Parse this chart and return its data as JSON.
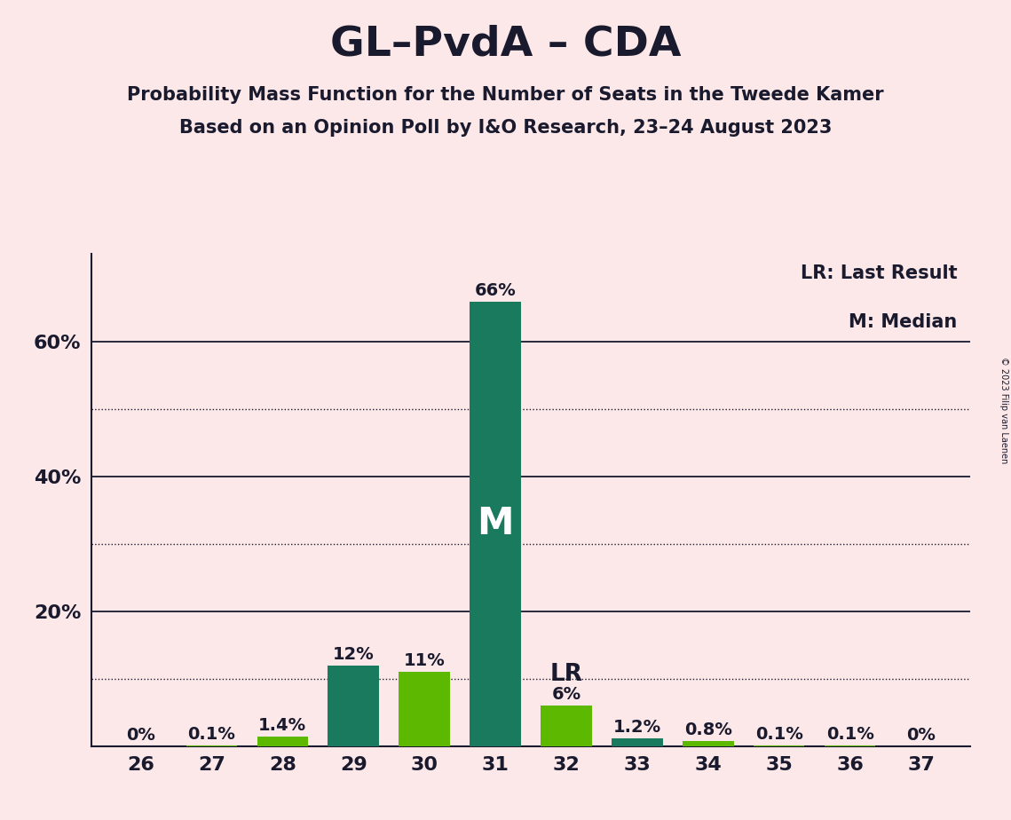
{
  "title": "GL–PvdA – CDA",
  "subtitle1": "Probability Mass Function for the Number of Seats in the Tweede Kamer",
  "subtitle2": "Based on an Opinion Poll by I&O Research, 23–24 August 2023",
  "copyright": "© 2023 Filip van Laenen",
  "seats": [
    26,
    27,
    28,
    29,
    30,
    31,
    32,
    33,
    34,
    35,
    36,
    37
  ],
  "probabilities": [
    0.0,
    0.1,
    1.4,
    12.0,
    11.0,
    66.0,
    6.0,
    1.2,
    0.8,
    0.1,
    0.1,
    0.0
  ],
  "bar_labels": [
    "0%",
    "0.1%",
    "1.4%",
    "12%",
    "11%",
    "66%",
    "6%",
    "1.2%",
    "0.8%",
    "0.1%",
    "0.1%",
    "0%"
  ],
  "bar_colors_list": [
    "#5cb800",
    "#5cb800",
    "#5cb800",
    "#1a7a5e",
    "#5cb800",
    "#1a7a5e",
    "#5cb800",
    "#1a7a5e",
    "#5cb800",
    "#5cb800",
    "#5cb800",
    "#5cb800"
  ],
  "median_seat": 31,
  "last_result_seat": 32,
  "dark_green": "#1a7a5e",
  "light_green": "#5cb800",
  "background_color": "#fce8e8",
  "solid_grid_ticks": [
    20,
    40,
    60
  ],
  "dotted_grid_ticks": [
    10,
    30,
    50
  ],
  "ytick_positions": [
    20,
    40,
    60
  ],
  "ytick_labels": [
    "20%",
    "40%",
    "60%"
  ],
  "ylim": [
    0,
    73
  ],
  "xlim_min": 25.3,
  "xlim_max": 37.7,
  "bar_width": 0.72,
  "legend_lr": "LR: Last Result",
  "legend_m": "M: Median",
  "label_m": "M",
  "label_lr": "LR",
  "title_fontsize": 34,
  "subtitle_fontsize": 15,
  "tick_fontsize": 16,
  "bar_label_fontsize": 14,
  "legend_fontsize": 15,
  "m_label_fontsize": 30,
  "lr_label_fontsize": 19
}
